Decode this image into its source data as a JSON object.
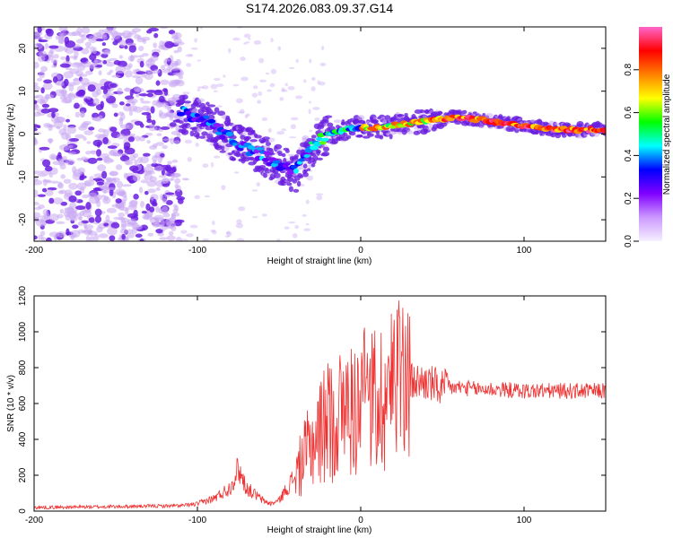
{
  "title": "S174.2026.083.09.37.G14",
  "colors": {
    "blob_light": "#c9a7f2",
    "blob_dark": "#6a1fe0",
    "snr_line": "#ee3333",
    "frame": "#000000"
  },
  "chart_data": [
    {
      "type": "heatmap",
      "name": "spectrogram",
      "xlabel": "Height of straight line (km)",
      "ylabel": "Frequency (Hz)",
      "xlim": [
        -200,
        150
      ],
      "ylim": [
        -25,
        25
      ],
      "xticks": [
        -200,
        -100,
        0,
        100
      ],
      "yticks": [
        -20,
        -10,
        0,
        10,
        20
      ],
      "ridge": {
        "description_points_km_hz": [
          [
            -110,
            5
          ],
          [
            -100,
            4
          ],
          [
            -90,
            2
          ],
          [
            -80,
            -1
          ],
          [
            -70,
            -3
          ],
          [
            -60,
            -5
          ],
          [
            -50,
            -7
          ],
          [
            -40,
            -9
          ],
          [
            -35,
            -6
          ],
          [
            -30,
            -3
          ],
          [
            -20,
            0
          ],
          [
            -10,
            1
          ],
          [
            0,
            1.5
          ],
          [
            10,
            1.5
          ],
          [
            20,
            2
          ],
          [
            30,
            2.5
          ],
          [
            40,
            3
          ],
          [
            50,
            3.5
          ],
          [
            60,
            4
          ],
          [
            70,
            3.5
          ],
          [
            80,
            3
          ],
          [
            90,
            2.5
          ],
          [
            100,
            2
          ],
          [
            110,
            1.5
          ],
          [
            120,
            1
          ],
          [
            130,
            1
          ],
          [
            140,
            1
          ],
          [
            150,
            1
          ]
        ]
      },
      "colorbar": {
        "label": "Normalized spectral amplitude",
        "ticks": [
          "0.0",
          "0.2",
          "0.4",
          "0.6",
          "0.8"
        ],
        "range": [
          0,
          1
        ],
        "stops": [
          "#f5f0ff",
          "#cc99ff",
          "#8000ff",
          "#0000ff",
          "#00ffff",
          "#00ff00",
          "#ffff00",
          "#ff8000",
          "#ff0000",
          "#ff66cc"
        ]
      }
    },
    {
      "type": "line",
      "name": "snr",
      "xlabel": "Height of straight line (km)",
      "ylabel": "SNR (10 * v/v)",
      "xlim": [
        -200,
        150
      ],
      "ylim": [
        0,
        1200
      ],
      "xticks": [
        -200,
        -100,
        0,
        100
      ],
      "yticks": [
        0,
        200,
        400,
        600,
        800,
        1000,
        1200
      ],
      "envelope_km": [
        -200,
        -150,
        -110,
        -100,
        -90,
        -80,
        -75,
        -70,
        -60,
        -55,
        -50,
        -40,
        -30,
        -20,
        -10,
        0,
        10,
        20,
        30,
        40,
        50,
        60,
        70,
        80,
        100,
        120,
        150
      ],
      "envelope_snr": [
        20,
        25,
        30,
        40,
        70,
        130,
        240,
        130,
        60,
        40,
        60,
        200,
        380,
        500,
        560,
        580,
        620,
        680,
        720,
        720,
        680,
        690,
        680,
        680,
        670,
        670,
        670
      ]
    }
  ]
}
